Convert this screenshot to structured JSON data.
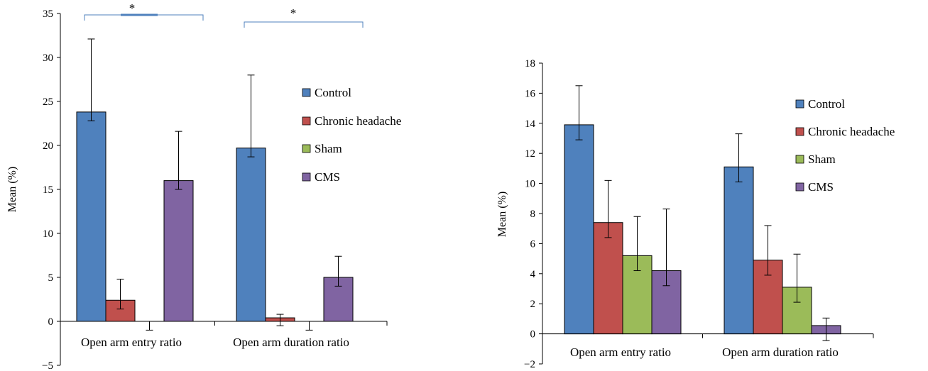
{
  "colors": {
    "Control": "#4f81bd",
    "Chronic headache": "#c0504d",
    "Sham": "#9bbb59",
    "CMS": "#8064a2",
    "bracket": "#4f81bd"
  },
  "chart_data": [
    {
      "type": "bar",
      "title": "",
      "xlabel": "",
      "ylabel": "Mean (%)",
      "ylim": [
        -5,
        35
      ],
      "yticks": [
        "−5",
        "0",
        "5",
        "10",
        "15",
        "20",
        "25",
        "30",
        "35"
      ],
      "categories": [
        "Open arm entry ratio",
        "Open arm duration ratio"
      ],
      "legend_position": "right",
      "series": [
        {
          "name": "Control",
          "values": [
            23.8,
            19.7
          ],
          "error": [
            8.3,
            8.3
          ],
          "error_down": [
            1.0,
            1.0
          ]
        },
        {
          "name": "Chronic headache",
          "values": [
            2.4,
            0.4
          ],
          "error": [
            2.4,
            0.4
          ],
          "error_down": [
            1.0,
            0.9
          ]
        },
        {
          "name": "Sham",
          "values": [
            0,
            0
          ],
          "error": [
            0,
            0
          ],
          "error_down": [
            1.0,
            1.0
          ]
        },
        {
          "name": "CMS",
          "values": [
            16.0,
            5.0
          ],
          "error": [
            5.6,
            2.4
          ],
          "error_down": [
            1.0,
            1.0
          ]
        }
      ],
      "annotations": [
        {
          "text": "*",
          "group": 0
        },
        {
          "text": "*",
          "group": 1
        }
      ]
    },
    {
      "type": "bar",
      "title": "",
      "xlabel": "",
      "ylabel": "Mean (%)",
      "ylim": [
        -2,
        18
      ],
      "yticks": [
        "−2",
        "0",
        "2",
        "4",
        "6",
        "8",
        "10",
        "12",
        "14",
        "16",
        "18"
      ],
      "categories": [
        "Open arm entry ratio",
        "Open arm duration ratio"
      ],
      "legend_position": "right",
      "series": [
        {
          "name": "Control",
          "values": [
            13.9,
            11.1
          ],
          "error": [
            2.6,
            2.2
          ],
          "error_down": [
            1.0,
            1.0
          ]
        },
        {
          "name": "Chronic headache",
          "values": [
            7.4,
            4.9
          ],
          "error": [
            2.8,
            2.3
          ],
          "error_down": [
            1.0,
            1.0
          ]
        },
        {
          "name": "Sham",
          "values": [
            5.2,
            3.1
          ],
          "error": [
            2.6,
            2.2
          ],
          "error_down": [
            1.0,
            1.0
          ]
        },
        {
          "name": "CMS",
          "values": [
            4.2,
            0.55
          ],
          "error": [
            4.1,
            0.5
          ],
          "error_down": [
            1.0,
            1.0
          ]
        }
      ]
    }
  ]
}
